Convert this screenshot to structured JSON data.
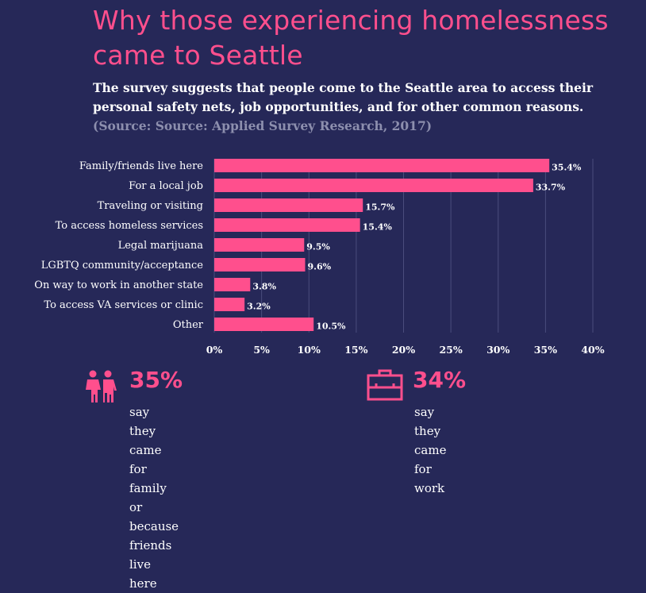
{
  "title": "Why those experiencing homelessness came to Seattle",
  "subtitle": "The survey suggests that people come to the Seattle area to access their personal safety nets, job opportunities, and for other common reasons.",
  "source": "(Source: Source: Applied Survey Research, 2017)",
  "colors": {
    "background": "#262858",
    "accent": "#ff4f8d"
  },
  "chart_data": {
    "type": "bar",
    "orientation": "horizontal",
    "categories": [
      "Family/friends live here",
      "For a local job",
      "Traveling or visiting",
      "To access homeless services",
      "Legal marijuana",
      "LGBTQ community/acceptance",
      "On way to work in another state",
      "To access VA services or clinic",
      "Other"
    ],
    "values": [
      35.4,
      33.7,
      15.7,
      15.4,
      9.5,
      9.6,
      3.8,
      3.2,
      10.5
    ],
    "value_labels": [
      "35.4%",
      "33.7%",
      "15.7%",
      "15.4%",
      "9.5%",
      "9.6%",
      "3.8%",
      "3.2%",
      "10.5%"
    ],
    "xlim": [
      0,
      40
    ],
    "ticks": [
      0,
      5,
      10,
      15,
      20,
      25,
      30,
      35,
      40
    ],
    "tick_labels": [
      "0%",
      "5%",
      "10%",
      "15%",
      "20%",
      "25%",
      "30%",
      "35%",
      "40%"
    ],
    "grid": true
  },
  "stats": [
    {
      "icon": "family-icon",
      "value": "35%",
      "text_lines": [
        "say they came for family or",
        "because friends live here"
      ]
    },
    {
      "icon": "briefcase-icon",
      "value": "34%",
      "text_lines": [
        "say they came",
        "for work"
      ]
    }
  ]
}
